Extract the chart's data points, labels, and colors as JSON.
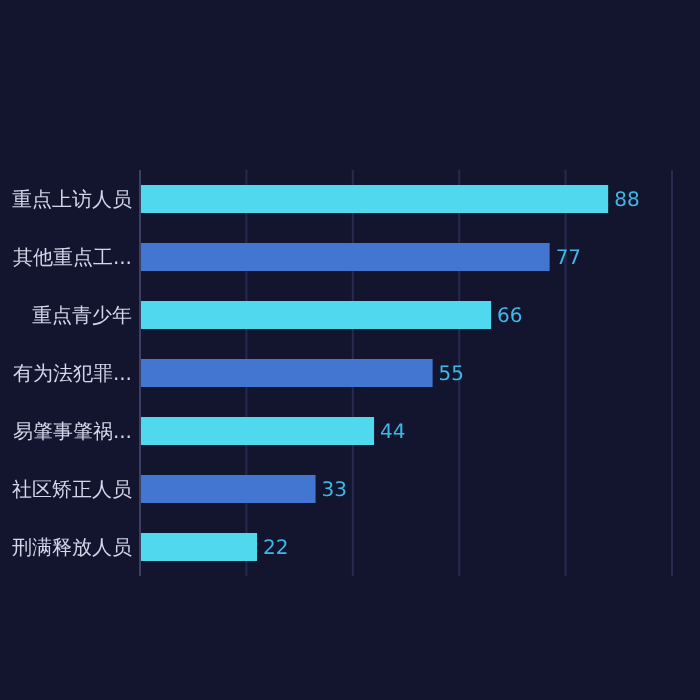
{
  "chart_data": {
    "type": "bar",
    "orientation": "horizontal",
    "categories": [
      "重点上访人员",
      "其他重点工...",
      "重点青少年",
      "有为法犯罪...",
      "易肇事肇祸...",
      "社区矫正人员",
      "刑满释放人员"
    ],
    "values": [
      88,
      77,
      66,
      55,
      44,
      33,
      22
    ],
    "colors": [
      "#4fd8ee",
      "#4276d0",
      "#4fd8ee",
      "#4276d0",
      "#4fd8ee",
      "#4276d0",
      "#4fd8ee"
    ],
    "xlim": [
      0,
      100
    ],
    "xticks": [
      {
        "value": 0,
        "label": null
      },
      {
        "value": 20,
        "label": null
      },
      {
        "value": 40,
        "label": null
      },
      {
        "value": 60,
        "label": null
      },
      {
        "value": 80,
        "label": null
      },
      {
        "value": 100,
        "label": null
      }
    ],
    "tick_labels": "y",
    "grid": "x",
    "data_labels": true
  }
}
